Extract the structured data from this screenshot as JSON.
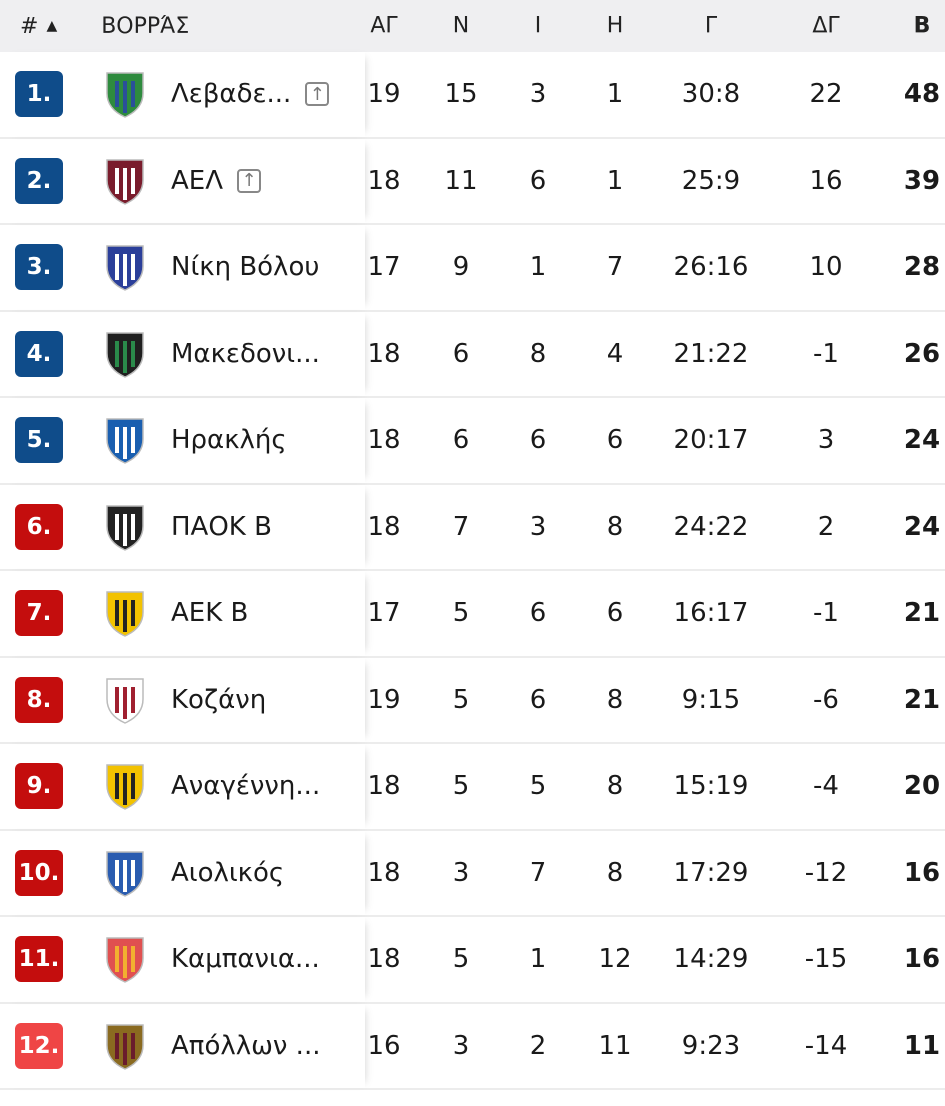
{
  "header": {
    "rank": "#",
    "sort_icon": "triangle-up",
    "group": "ΒΟΡΡΆΣ",
    "cols": [
      "ΑΓ",
      "Ν",
      "Ι",
      "Η",
      "Γ",
      "ΔΓ",
      "Β"
    ]
  },
  "colors": {
    "promotion": "#0f4c8a",
    "relegation": "#c40d0d",
    "relegation_light": "#ef4545"
  },
  "rows": [
    {
      "pos": "1.",
      "zone": "promotion",
      "team": "Λεβαδε...",
      "promoted": true,
      "logo": [
        "#2e8b3e",
        "#2a4f9a"
      ],
      "played": "19",
      "w": "15",
      "d": "3",
      "l": "1",
      "goals": "30:8",
      "gd": "22",
      "pts": "48"
    },
    {
      "pos": "2.",
      "zone": "promotion",
      "team": "ΑΕΛ",
      "promoted": true,
      "logo": [
        "#7a1c2c",
        "#fff"
      ],
      "played": "18",
      "w": "11",
      "d": "6",
      "l": "1",
      "goals": "25:9",
      "gd": "16",
      "pts": "39"
    },
    {
      "pos": "3.",
      "zone": "promotion",
      "team": "Νίκη Βόλου",
      "logo": [
        "#2b3f9a",
        "#fff"
      ],
      "played": "17",
      "w": "9",
      "d": "1",
      "l": "7",
      "goals": "26:16",
      "gd": "10",
      "pts": "28"
    },
    {
      "pos": "4.",
      "zone": "promotion",
      "team": "Μακεδονι...",
      "logo": [
        "#1f1f1f",
        "#2a8a4a"
      ],
      "played": "18",
      "w": "6",
      "d": "8",
      "l": "4",
      "goals": "21:22",
      "gd": "-1",
      "pts": "26"
    },
    {
      "pos": "5.",
      "zone": "promotion",
      "team": "Ηρακλής",
      "logo": [
        "#1a5fb0",
        "#fff"
      ],
      "played": "18",
      "w": "6",
      "d": "6",
      "l": "6",
      "goals": "20:17",
      "gd": "3",
      "pts": "24"
    },
    {
      "pos": "6.",
      "zone": "relegation",
      "team": "ΠΑΟΚ Β",
      "logo": [
        "#222",
        "#fff"
      ],
      "played": "18",
      "w": "7",
      "d": "3",
      "l": "8",
      "goals": "24:22",
      "gd": "2",
      "pts": "24"
    },
    {
      "pos": "7.",
      "zone": "relegation",
      "team": "ΑΕΚ Β",
      "logo": [
        "#f2c200",
        "#222"
      ],
      "played": "17",
      "w": "5",
      "d": "6",
      "l": "6",
      "goals": "16:17",
      "gd": "-1",
      "pts": "21"
    },
    {
      "pos": "8.",
      "zone": "relegation",
      "team": "Κοζάνη",
      "logo": [
        "#fff",
        "#a02030"
      ],
      "played": "19",
      "w": "5",
      "d": "6",
      "l": "8",
      "goals": "9:15",
      "gd": "-6",
      "pts": "21"
    },
    {
      "pos": "9.",
      "zone": "relegation",
      "team": "Αναγέννη...",
      "logo": [
        "#f2c200",
        "#222"
      ],
      "played": "18",
      "w": "5",
      "d": "5",
      "l": "8",
      "goals": "15:19",
      "gd": "-4",
      "pts": "20"
    },
    {
      "pos": "10.",
      "zone": "relegation",
      "team": "Αιολικός",
      "logo": [
        "#2a5cb0",
        "#fff"
      ],
      "played": "18",
      "w": "3",
      "d": "7",
      "l": "8",
      "goals": "17:29",
      "gd": "-12",
      "pts": "16"
    },
    {
      "pos": "11.",
      "zone": "relegation",
      "team": "Καμπανια...",
      "logo": [
        "#e05050",
        "#f2b030"
      ],
      "played": "18",
      "w": "5",
      "d": "1",
      "l": "12",
      "goals": "14:29",
      "gd": "-15",
      "pts": "16"
    },
    {
      "pos": "12.",
      "zone": "relegation_light",
      "team": "Απόλλων ...",
      "logo": [
        "#8a6a20",
        "#6a1c2c"
      ],
      "played": "16",
      "w": "3",
      "d": "2",
      "l": "11",
      "goals": "9:23",
      "gd": "-14",
      "pts": "11"
    }
  ]
}
